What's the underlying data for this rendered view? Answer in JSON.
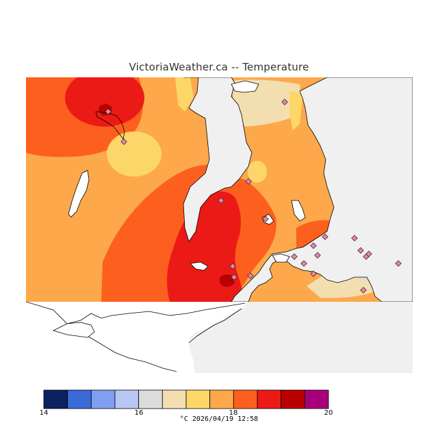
{
  "title": "VictoriaWeather.ca -- Temperature",
  "colors": {
    "land": "#ffffff",
    "water": "#f0f0f0",
    "coast": "#000000",
    "station_fill": "#ee82aa",
    "station_stroke": "#333333"
  },
  "legend": {
    "bins": [
      {
        "from": 14.0,
        "to": 14.5,
        "color": "#0c2260"
      },
      {
        "from": 14.5,
        "to": 15.0,
        "color": "#3a6ad8"
      },
      {
        "from": 15.0,
        "to": 15.5,
        "color": "#7f9ff0"
      },
      {
        "from": 15.5,
        "to": 16.0,
        "color": "#b7c6f2"
      },
      {
        "from": 16.0,
        "to": 16.5,
        "color": "#dcdcdc"
      },
      {
        "from": 16.5,
        "to": 17.0,
        "color": "#f3deb0"
      },
      {
        "from": 17.0,
        "to": 17.5,
        "color": "#fdd66a"
      },
      {
        "from": 17.5,
        "to": 18.0,
        "color": "#fda84a"
      },
      {
        "from": 18.0,
        "to": 18.5,
        "color": "#fd5f1e"
      },
      {
        "from": 18.5,
        "to": 19.0,
        "color": "#ec1a16"
      },
      {
        "from": 19.0,
        "to": 19.5,
        "color": "#b80000"
      },
      {
        "from": 19.5,
        "to": 20.0,
        "color": "#a8007a"
      }
    ],
    "ticks": [
      "14",
      "16",
      "18",
      "20"
    ],
    "unit": "°C",
    "timestamp": "2026/04/19 12:58"
  }
}
